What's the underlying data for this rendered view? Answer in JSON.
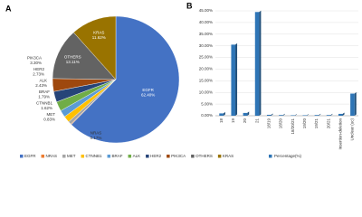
{
  "chart_data": [
    {
      "type": "pie",
      "panel": "A",
      "categories": [
        "EGFR",
        "NRAS",
        "MET",
        "CTNNB1",
        "BRAF",
        "ALK",
        "HER2",
        "PIK3CA",
        "OTHERS",
        "KRAS"
      ],
      "values": [
        62.4,
        0.17,
        0.83,
        1.62,
        1.79,
        2.43,
        2.73,
        3.3,
        13.11,
        11.62
      ],
      "value_labels": [
        "62.40%",
        "0.17%",
        "0.83%",
        "1.62%",
        "1.79%",
        "2.43%",
        "2.73%",
        "3.30%",
        "13.11%",
        "11.62%"
      ],
      "colors": [
        "#4472c4",
        "#ed7d31",
        "#a5a5a5",
        "#ffc000",
        "#5b9bd5",
        "#70ad47",
        "#264478",
        "#9e480e",
        "#636363",
        "#997300"
      ],
      "legend": "bottom"
    },
    {
      "type": "bar",
      "panel": "B",
      "categories": [
        "18",
        "19",
        "20",
        "21",
        "18/19",
        "18/20",
        "18/20/21",
        "19/20",
        "19/21",
        "20/21",
        "Insertion-deletion",
        "Unclear (uc)"
      ],
      "series": [
        {
          "name": "Percentage(%)",
          "color": "#2e75b6",
          "values": [
            1.0,
            30.5,
            1.2,
            44.5,
            0.4,
            0.3,
            0.2,
            0.2,
            0.3,
            0.3,
            0.8,
            9.5
          ]
        }
      ],
      "ylim": [
        0,
        45
      ],
      "yticks": [
        {
          "value": 0,
          "label": "0.00%"
        },
        {
          "value": 5,
          "label": "5.00%"
        },
        {
          "value": 10,
          "label": "10.00%"
        },
        {
          "value": 15,
          "label": "15.00%"
        },
        {
          "value": 20,
          "label": "20.00%"
        },
        {
          "value": 25,
          "label": "25.00%"
        },
        {
          "value": 30,
          "label": "30.00%"
        },
        {
          "value": 35,
          "label": "35.00%"
        },
        {
          "value": 40,
          "label": "40.00%"
        },
        {
          "value": 45,
          "label": "45.00%"
        }
      ],
      "grid": true,
      "legend": "bottom"
    }
  ]
}
